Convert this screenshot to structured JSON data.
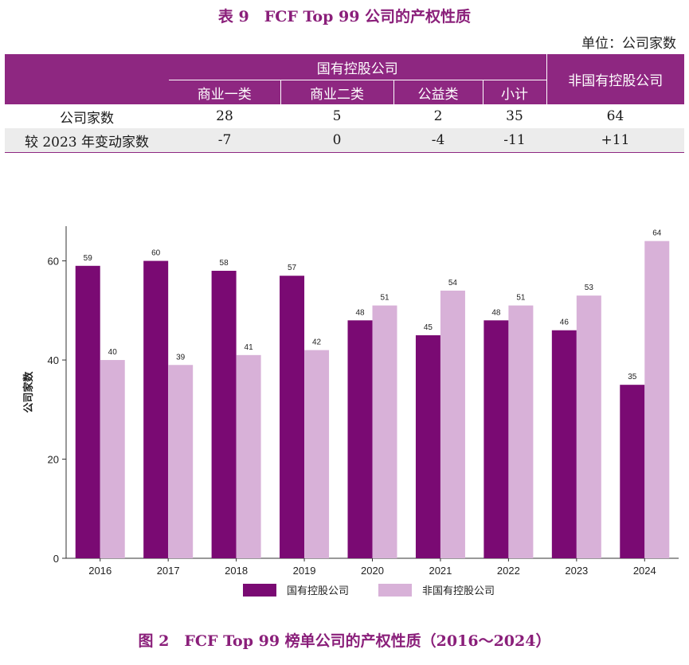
{
  "table": {
    "title": "表 9　FCF Top 99 公司的产权性质",
    "unit": "单位：公司家数",
    "group_header": "国有控股公司",
    "non_state_header": "非国有控股公司",
    "sub_headers": [
      "商业一类",
      "商业二类",
      "公益类",
      "小计"
    ],
    "rows": [
      {
        "label": "公司家数",
        "values": [
          "28",
          "5",
          "2",
          "35",
          "64"
        ]
      },
      {
        "label": "较 2023 年变动家数",
        "values": [
          "-7",
          "0",
          "-4",
          "-11",
          "+11"
        ]
      }
    ]
  },
  "figure_caption": "图 2　FCF Top 99 榜单公司的产权性质（2016～2024）",
  "chart_data": {
    "type": "bar",
    "categories": [
      "2016",
      "2017",
      "2018",
      "2019",
      "2020",
      "2021",
      "2022",
      "2023",
      "2024"
    ],
    "series": [
      {
        "name": "国有控股公司",
        "color": "#7a0a73",
        "values": [
          59,
          60,
          58,
          57,
          48,
          45,
          48,
          46,
          35
        ]
      },
      {
        "name": "非国有控股公司",
        "color": "#d8b1d8",
        "values": [
          40,
          39,
          41,
          42,
          51,
          54,
          51,
          53,
          64
        ]
      }
    ],
    "ylabel": "公司家数",
    "xlabel": "",
    "ylim": [
      0,
      67
    ],
    "yticks": [
      0,
      20,
      40,
      60
    ],
    "legend": "bottom-center",
    "grid": false
  }
}
